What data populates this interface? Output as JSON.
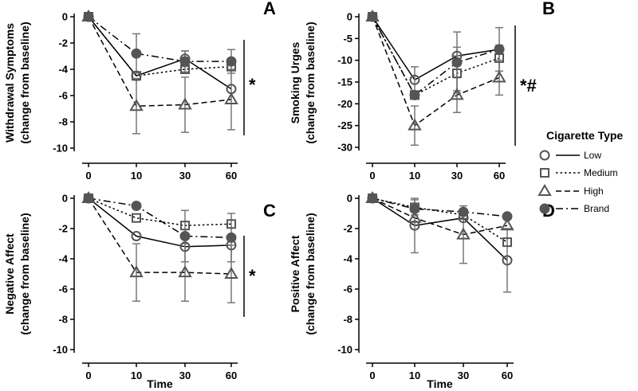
{
  "chart_data": [
    {
      "type": "line",
      "panel": "A",
      "x": [
        0,
        10,
        30,
        60
      ],
      "xticks": [
        "0",
        "10",
        "30",
        "60"
      ],
      "xlabel": "",
      "ylabel": [
        "Withdrawal Symptoms",
        "(change from baseline)"
      ],
      "ylim": [
        -10,
        0
      ],
      "yticks": [
        0,
        -2,
        -4,
        -6,
        -8,
        -10
      ],
      "significance": "*",
      "series": [
        {
          "name": "Low",
          "values": [
            0,
            -4.5,
            -3.2,
            -5.5
          ],
          "err": [
            0,
            0,
            0.6,
            0
          ]
        },
        {
          "name": "Medium",
          "values": [
            0,
            -4.5,
            -4.0,
            -3.8
          ],
          "err": [
            0,
            0,
            0,
            0
          ]
        },
        {
          "name": "High",
          "values": [
            0,
            -6.8,
            -6.7,
            -6.3
          ],
          "err": [
            0,
            2.1,
            2.1,
            2.3
          ]
        },
        {
          "name": "Brand",
          "values": [
            0,
            -2.8,
            -3.4,
            -3.4
          ],
          "err": [
            0,
            1.5,
            0.8,
            0.9
          ]
        }
      ]
    },
    {
      "type": "line",
      "panel": "B",
      "x": [
        0,
        10,
        30,
        60
      ],
      "xticks": [
        "0",
        "10",
        "30",
        "60"
      ],
      "xlabel": "",
      "ylabel": [
        "Smoking Urges",
        "(change from baseline)"
      ],
      "ylim": [
        -30,
        0
      ],
      "yticks": [
        0,
        -5,
        -10,
        -15,
        -20,
        -25,
        -30
      ],
      "significance": "*#",
      "series": [
        {
          "name": "Low",
          "values": [
            0,
            -14.5,
            -9,
            -7.5
          ],
          "err": [
            0,
            3,
            2,
            5
          ]
        },
        {
          "name": "Medium",
          "values": [
            0,
            -18,
            -13,
            -9.5
          ],
          "err": [
            0,
            0,
            4,
            3
          ]
        },
        {
          "name": "High",
          "values": [
            0,
            -25,
            -18,
            -14
          ],
          "err": [
            0,
            4.5,
            4,
            4
          ]
        },
        {
          "name": "Brand",
          "values": [
            0,
            -18,
            -10.5,
            -7.5
          ],
          "err": [
            0,
            0,
            7,
            0
          ]
        }
      ]
    },
    {
      "type": "line",
      "panel": "C",
      "x": [
        0,
        10,
        30,
        60
      ],
      "xticks": [
        "0",
        "10",
        "30",
        "60"
      ],
      "xlabel": "Time",
      "ylabel": [
        "Negative Affect",
        "(change from baseline)"
      ],
      "ylim": [
        -10,
        0
      ],
      "yticks": [
        0,
        -2,
        -4,
        -6,
        -8,
        -10
      ],
      "significance": "*",
      "series": [
        {
          "name": "Low",
          "values": [
            0,
            -2.5,
            -3.2,
            -3.1
          ],
          "err": [
            0,
            0,
            0,
            0
          ]
        },
        {
          "name": "Medium",
          "values": [
            0,
            -1.3,
            -1.8,
            -1.7
          ],
          "err": [
            0,
            0,
            0,
            0
          ]
        },
        {
          "name": "High",
          "values": [
            0,
            -4.9,
            -4.9,
            -5.0
          ],
          "err": [
            0,
            1.9,
            1.9,
            1.9
          ]
        },
        {
          "name": "Brand",
          "values": [
            0,
            -0.5,
            -2.5,
            -2.6
          ],
          "err": [
            0,
            0,
            1.7,
            1.6
          ]
        }
      ]
    },
    {
      "type": "line",
      "panel": "D",
      "x": [
        0,
        10,
        30,
        60
      ],
      "xticks": [
        "0",
        "10",
        "30",
        "60"
      ],
      "xlabel": "Time",
      "ylabel": [
        "Positive Affect",
        "(change from baseline)"
      ],
      "ylim": [
        -10,
        0
      ],
      "yticks": [
        0,
        -2,
        -4,
        -6,
        -8,
        -10
      ],
      "significance": "",
      "series": [
        {
          "name": "Low",
          "values": [
            0,
            -1.8,
            -1.3,
            -4.1
          ],
          "err": [
            0,
            1.8,
            0,
            2.1
          ]
        },
        {
          "name": "Medium",
          "values": [
            0,
            -0.6,
            -1.1,
            -2.9
          ],
          "err": [
            0,
            0.5,
            0,
            0
          ]
        },
        {
          "name": "High",
          "values": [
            0,
            -1.3,
            -2.4,
            -1.8
          ],
          "err": [
            0,
            0,
            1.9,
            0
          ]
        },
        {
          "name": "Brand",
          "values": [
            0,
            -0.7,
            -0.9,
            -1.2
          ],
          "err": [
            0,
            0,
            0,
            0
          ]
        }
      ]
    }
  ],
  "legend": {
    "title": "Cigarette Type",
    "entries": [
      {
        "name": "Low",
        "marker": "circle-open",
        "dash": "solid"
      },
      {
        "name": "Medium",
        "marker": "square-open",
        "dash": "dotted"
      },
      {
        "name": "High",
        "marker": "triangle-open",
        "dash": "dashed"
      },
      {
        "name": "Brand",
        "marker": "circle-filled",
        "dash": "dash-dot"
      }
    ]
  },
  "colors": {
    "axis": "#000000",
    "marker": "#555555",
    "error_bar": "#777777",
    "significance_line": "#444444"
  }
}
